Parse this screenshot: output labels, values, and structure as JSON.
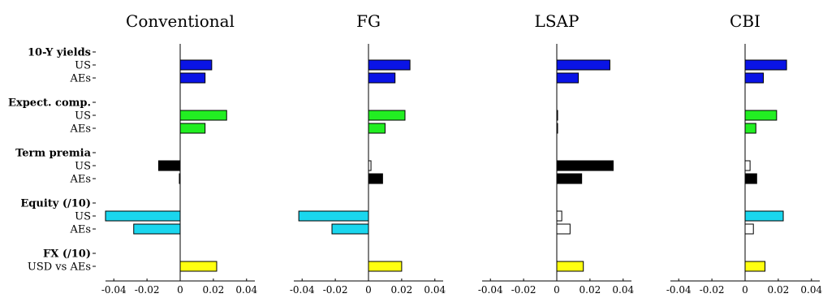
{
  "chart_data": {
    "type": "bar",
    "orientation": "horizontal",
    "xlim": [
      -0.045,
      0.045
    ],
    "xticks": [
      -0.04,
      -0.02,
      0,
      0.02,
      0.04
    ],
    "xtick_labels": [
      "-0.04",
      "-0.02",
      "0",
      "0.02",
      "0.04"
    ],
    "colors": {
      "10-Y yields": "#0a14e6",
      "Expect. comp.": "#22ee22",
      "Term premia": "#000000",
      "Equity (/10)": "#1ad6ee",
      "FX (/10)": "#ffff10",
      "insignificant": "#ffffff"
    },
    "rows": [
      {
        "group": "10-Y yields",
        "label": "US"
      },
      {
        "group": "10-Y yields",
        "label": "AEs"
      },
      {
        "group": "Expect. comp.",
        "label": "US"
      },
      {
        "group": "Expect. comp.",
        "label": "AEs"
      },
      {
        "group": "Term premia",
        "label": "US"
      },
      {
        "group": "Term premia",
        "label": "AEs"
      },
      {
        "group": "Equity (/10)",
        "label": "US"
      },
      {
        "group": "Equity (/10)",
        "label": "AEs"
      },
      {
        "group": "FX (/10)",
        "label": "USD vs AEs"
      }
    ],
    "panels": [
      {
        "title": "Conventional",
        "values": [
          0.019,
          0.015,
          0.028,
          0.015,
          -0.013,
          -0.0005,
          -0.045,
          -0.028,
          0.022
        ],
        "significant": [
          true,
          true,
          true,
          true,
          true,
          false,
          true,
          true,
          true
        ]
      },
      {
        "title": "FG",
        "values": [
          0.025,
          0.016,
          0.022,
          0.01,
          0.0015,
          0.0085,
          -0.042,
          -0.022,
          0.02
        ],
        "significant": [
          true,
          true,
          true,
          true,
          false,
          true,
          true,
          true,
          true
        ]
      },
      {
        "title": "LSAP",
        "values": [
          0.032,
          0.013,
          0.0005,
          0.0005,
          0.034,
          0.015,
          0.003,
          0.008,
          0.016
        ],
        "significant": [
          true,
          true,
          false,
          false,
          true,
          true,
          false,
          false,
          true
        ]
      },
      {
        "title": "CBI",
        "values": [
          0.025,
          0.011,
          0.019,
          0.0065,
          0.003,
          0.007,
          0.023,
          0.005,
          0.012
        ],
        "significant": [
          true,
          true,
          true,
          true,
          false,
          true,
          true,
          false,
          true
        ]
      }
    ]
  }
}
